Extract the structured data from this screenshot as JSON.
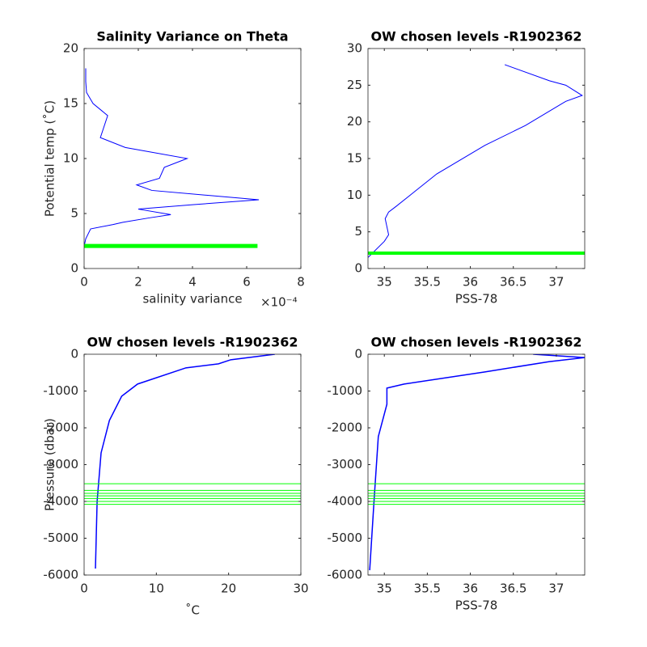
{
  "chart_data": [
    {
      "type": "line",
      "title": "Salinity Variance on Theta",
      "x_label": "salinity variance",
      "x_exponent_label": "×10⁻⁴",
      "y_label": "Potential temp (˚C)",
      "xlim": [
        0,
        8
      ],
      "xticks": [
        0,
        2,
        4,
        6,
        8
      ],
      "ylim": [
        0,
        20
      ],
      "yticks": [
        0,
        5,
        10,
        15,
        20
      ],
      "series": [
        {
          "color": "#0000ff",
          "line_width": 1,
          "x": [
            0.06,
            0.06,
            0.09,
            0.33,
            0.87,
            0.6,
            1.52,
            3.8,
            2.96,
            2.78,
            1.94,
            2.5,
            6.45,
            4.0,
            2.0,
            3.2,
            2.4,
            1.43,
            1.07,
            0.24,
            0.06,
            0
          ],
          "values": [
            18.2,
            17,
            16,
            15,
            13.9,
            11.9,
            11,
            10,
            9.2,
            8.2,
            7.6,
            7.1,
            6.25,
            5.8,
            5.4,
            4.9,
            4.6,
            4.2,
            4.0,
            3.6,
            2.7,
            2.0
          ]
        },
        {
          "color": "#00ff00",
          "line_width": 5,
          "x": [
            0,
            6.4
          ],
          "values": [
            2.05,
            2.05
          ]
        }
      ]
    },
    {
      "type": "line",
      "title": "OW chosen levels -R1902362",
      "x_label": "PSS-78",
      "xlim": [
        34.81,
        37.33
      ],
      "xticks": [
        35,
        35.5,
        36,
        36.5,
        37
      ],
      "ylim": [
        0,
        30
      ],
      "yticks": [
        0,
        5,
        10,
        15,
        20,
        25,
        30
      ],
      "series": [
        {
          "color": "#0000ff",
          "line_width": 1,
          "x": [
            34.81,
            35,
            35.05,
            35.01,
            35.05,
            35.14,
            35.61,
            36.17,
            36.64,
            37.11,
            37.3,
            37.11,
            36.92,
            36.4
          ],
          "values": [
            1.5,
            3.7,
            4.6,
            6.8,
            7.7,
            8.5,
            12.9,
            16.8,
            19.5,
            22.8,
            23.6,
            25,
            25.6,
            27.8
          ]
        },
        {
          "color": "#00ff00",
          "line_width": 4,
          "x": [
            34.81,
            37.33
          ],
          "values": [
            2.1,
            2.1
          ]
        }
      ]
    },
    {
      "type": "line",
      "title": "OW chosen levels -R1902362",
      "x_label": "˚C",
      "y_label": "Pressure (dbar)",
      "xlim": [
        0,
        30
      ],
      "xticks": [
        0,
        10,
        20,
        30
      ],
      "ylim": [
        -6000,
        0
      ],
      "yticks": [
        -6000,
        -5000,
        -4000,
        -3000,
        -2000,
        -1000,
        0
      ],
      "series": [
        {
          "color": "#0000ff",
          "line_width": 1.5,
          "x": [
            1.57,
            1.8,
            2.35,
            3.5,
            5.2,
            7.4,
            14.1,
            18.6,
            20.3,
            26.4
          ],
          "values": [
            -5824,
            -4000,
            -2680,
            -1800,
            -1140,
            -810,
            -370,
            -260,
            -150,
            0
          ]
        },
        {
          "color": "#00ff00",
          "line_width": 1,
          "x": [
            0,
            30
          ],
          "values": [
            -3520,
            -3520
          ]
        },
        {
          "color": "#00ff00",
          "line_width": 1,
          "x": [
            0,
            30
          ],
          "values": [
            -3700,
            -3700
          ]
        },
        {
          "color": "#00ff00",
          "line_width": 1,
          "x": [
            0,
            30
          ],
          "values": [
            -3780,
            -3780
          ]
        },
        {
          "color": "#00ff00",
          "line_width": 1,
          "x": [
            0,
            30
          ],
          "values": [
            -3850,
            -3850
          ]
        },
        {
          "color": "#00ff00",
          "line_width": 1,
          "x": [
            0,
            30
          ],
          "values": [
            -3920,
            -3920
          ]
        },
        {
          "color": "#00ff00",
          "line_width": 1,
          "x": [
            0,
            30
          ],
          "values": [
            -4000,
            -4000
          ]
        },
        {
          "color": "#00ff00",
          "line_width": 1,
          "x": [
            0,
            30
          ],
          "values": [
            -4080,
            -4080
          ]
        }
      ]
    },
    {
      "type": "line",
      "title": "OW chosen levels -R1902362",
      "x_label": "PSS-78",
      "xlim": [
        34.81,
        37.33
      ],
      "xticks": [
        35,
        35.5,
        36,
        36.5,
        37
      ],
      "ylim": [
        -6000,
        0
      ],
      "yticks": [
        -6000,
        -5000,
        -4000,
        -3000,
        -2000,
        -1000,
        0
      ],
      "series": [
        {
          "color": "#0000ff",
          "line_width": 1.5,
          "x": [
            34.83,
            34.88,
            34.93,
            35.03,
            35.03,
            35.23,
            36.17,
            36.92,
            37.33,
            36.73
          ],
          "values": [
            -5870,
            -4000,
            -2240,
            -1360,
            -920,
            -810,
            -480,
            -200,
            -90,
            0
          ]
        },
        {
          "color": "#00ff00",
          "line_width": 1,
          "x": [
            34.81,
            37.33
          ],
          "values": [
            -3520,
            -3520
          ]
        },
        {
          "color": "#00ff00",
          "line_width": 1,
          "x": [
            34.81,
            37.33
          ],
          "values": [
            -3700,
            -3700
          ]
        },
        {
          "color": "#00ff00",
          "line_width": 1,
          "x": [
            34.81,
            37.33
          ],
          "values": [
            -3780,
            -3780
          ]
        },
        {
          "color": "#00ff00",
          "line_width": 1,
          "x": [
            34.81,
            37.33
          ],
          "values": [
            -3850,
            -3850
          ]
        },
        {
          "color": "#00ff00",
          "line_width": 1,
          "x": [
            34.81,
            37.33
          ],
          "values": [
            -3920,
            -3920
          ]
        },
        {
          "color": "#00ff00",
          "line_width": 1,
          "x": [
            34.81,
            37.33
          ],
          "values": [
            -4000,
            -4000
          ]
        },
        {
          "color": "#00ff00",
          "line_width": 1,
          "x": [
            34.81,
            37.33
          ],
          "values": [
            -4080,
            -4080
          ]
        }
      ]
    }
  ]
}
